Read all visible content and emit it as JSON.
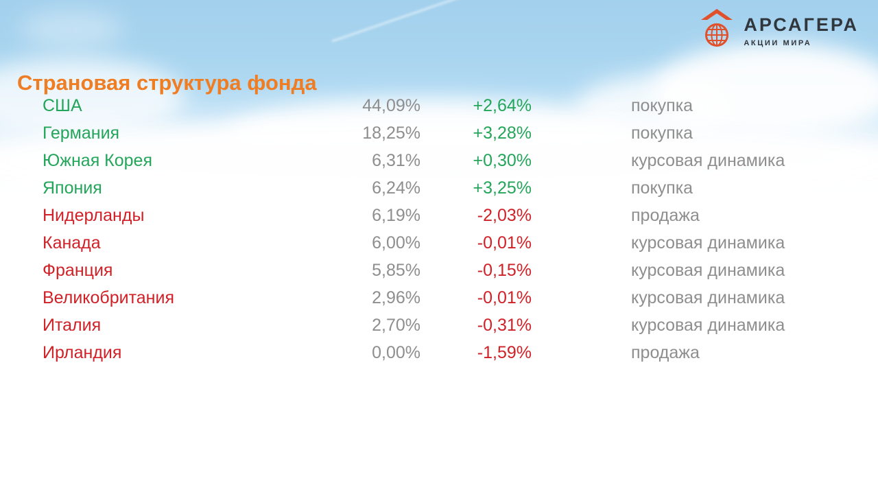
{
  "page": {
    "title": "Страновая структура фонда"
  },
  "logo": {
    "brand": "АРСАГЕРА",
    "tagline": "АКЦИИ МИРА"
  },
  "colors": {
    "title_orange": "#EE7D24",
    "positive_green": "#23A55A",
    "negative_red": "#CF2127",
    "neutral_gray": "#8E8E8E",
    "logo_accent": "#E0512B",
    "logo_text": "#31363C",
    "sky_blue": "#A5D2EE"
  },
  "table": {
    "rows": [
      {
        "country": "США",
        "share": "44,09%",
        "change": "+2,64%",
        "action": "покупка",
        "trend": "up"
      },
      {
        "country": "Германия",
        "share": "18,25%",
        "change": "+3,28%",
        "action": "покупка",
        "trend": "up"
      },
      {
        "country": "Южная Корея",
        "share": "6,31%",
        "change": "+0,30%",
        "action": "курсовая динамика",
        "trend": "up"
      },
      {
        "country": "Япония",
        "share": "6,24%",
        "change": "+3,25%",
        "action": "покупка",
        "trend": "up"
      },
      {
        "country": "Нидерланды",
        "share": "6,19%",
        "change": "-2,03%",
        "action": "продажа",
        "trend": "down"
      },
      {
        "country": "Канада",
        "share": "6,00%",
        "change": "-0,01%",
        "action": "курсовая динамика",
        "trend": "down"
      },
      {
        "country": "Франция",
        "share": "5,85%",
        "change": "-0,15%",
        "action": "курсовая динамика",
        "trend": "down"
      },
      {
        "country": "Великобритания",
        "share": "2,96%",
        "change": "-0,01%",
        "action": "курсовая динамика",
        "trend": "down"
      },
      {
        "country": "Италия",
        "share": "2,70%",
        "change": "-0,31%",
        "action": "курсовая динамика",
        "trend": "down"
      },
      {
        "country": "Ирландия",
        "share": "0,00%",
        "change": "-1,59%",
        "action": "продажа",
        "trend": "down"
      }
    ]
  }
}
